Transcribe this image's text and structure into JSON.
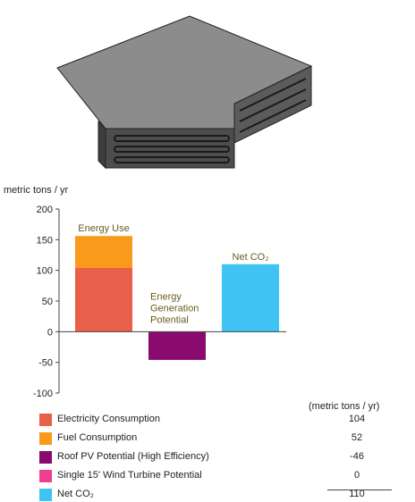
{
  "colors": {
    "electricity": "#e8604a",
    "fuel": "#f99a1c",
    "roof_pv": "#8a0a6e",
    "wind": "#ee3f8f",
    "net_co2": "#3fc3f2",
    "bar_label": "#6b5a1e"
  },
  "chart_data": {
    "type": "bar",
    "ylabel": "metric tons / yr",
    "ylim": [
      -100,
      200
    ],
    "yticks": [
      "200",
      "150",
      "100",
      "50",
      "0",
      "-50",
      "-100"
    ],
    "bars": [
      {
        "label": "Energy Use",
        "segments": [
          {
            "name": "Electricity Consumption",
            "value": 104,
            "color_key": "electricity"
          },
          {
            "name": "Fuel Consumption",
            "value": 52,
            "color_key": "fuel"
          }
        ]
      },
      {
        "label": "Energy Generation Potential",
        "label_lines": [
          "Energy",
          "Generation",
          "Potential"
        ],
        "segments": [
          {
            "name": "Roof PV Potential (High Efficiency)",
            "value": -46,
            "color_key": "roof_pv"
          }
        ]
      },
      {
        "label": "Net CO₂",
        "segments": [
          {
            "name": "Net CO₂",
            "value": 110,
            "color_key": "net_co2"
          }
        ]
      }
    ]
  },
  "legend": {
    "unit_header": "(metric tons / yr)",
    "items": [
      {
        "label": "Electricity Consumption",
        "value": "104",
        "color_key": "electricity"
      },
      {
        "label": "Fuel Consumption",
        "value": "52",
        "color_key": "fuel"
      },
      {
        "label": "Roof PV Potential (High Efficiency)",
        "value": "-46",
        "color_key": "roof_pv"
      },
      {
        "label": "Single 15' Wind Turbine Potential",
        "value": "0",
        "color_key": "wind"
      },
      {
        "label": "Net CO₂",
        "value": "110",
        "color_key": "net_co2"
      }
    ]
  }
}
